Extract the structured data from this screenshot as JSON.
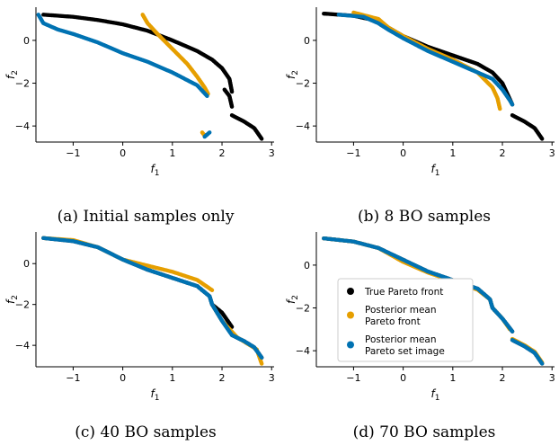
{
  "colors": {
    "true_front": "#000000",
    "posterior_front": "#e69f00",
    "posterior_set": "#0072b2"
  },
  "legend": {
    "items": [
      {
        "lines": [
          "True Pareto front"
        ],
        "color_key": "true_front"
      },
      {
        "lines": [
          "Posterior mean",
          "Pareto front"
        ],
        "color_key": "posterior_front"
      },
      {
        "lines": [
          "Posterior mean",
          "Pareto set image"
        ],
        "color_key": "posterior_set"
      }
    ]
  },
  "chart_data": [
    {
      "type": "scatter",
      "caption": "(a) Initial samples only",
      "xlabel": "f1",
      "ylabel": "f2",
      "xlim": [
        -1.75,
        3.05
      ],
      "ylim": [
        -4.75,
        1.55
      ],
      "xticks": [
        -1,
        0,
        1,
        2,
        3
      ],
      "yticks": [
        -4,
        -2,
        0
      ],
      "grid": false,
      "legend": null,
      "series": [
        {
          "color_key": "true_front",
          "segments": [
            [
              [
                -1.6,
                1.2
              ],
              [
                -1.0,
                1.1
              ],
              [
                -0.5,
                0.95
              ],
              [
                0.0,
                0.75
              ],
              [
                0.5,
                0.45
              ],
              [
                1.0,
                0.0
              ],
              [
                1.5,
                -0.5
              ],
              [
                1.8,
                -0.9
              ],
              [
                2.0,
                -1.3
              ],
              [
                2.15,
                -1.8
              ],
              [
                2.2,
                -2.4
              ]
            ],
            [
              [
                2.05,
                -2.3
              ],
              [
                2.15,
                -2.6
              ],
              [
                2.2,
                -3.1
              ]
            ],
            [
              [
                2.2,
                -3.5
              ],
              [
                2.45,
                -3.8
              ],
              [
                2.65,
                -4.1
              ],
              [
                2.8,
                -4.6
              ]
            ]
          ]
        },
        {
          "color_key": "posterior_front",
          "segments": [
            [
              [
                0.4,
                1.2
              ],
              [
                0.5,
                0.8
              ],
              [
                0.7,
                0.3
              ],
              [
                1.0,
                -0.4
              ],
              [
                1.3,
                -1.1
              ],
              [
                1.5,
                -1.7
              ],
              [
                1.65,
                -2.2
              ],
              [
                1.72,
                -2.5
              ]
            ],
            [
              [
                1.6,
                -4.3
              ],
              [
                1.65,
                -4.45
              ]
            ]
          ]
        },
        {
          "color_key": "posterior_set",
          "segments": [
            [
              [
                -1.7,
                1.2
              ],
              [
                -1.6,
                0.8
              ],
              [
                -1.3,
                0.5
              ],
              [
                -1.0,
                0.3
              ],
              [
                -0.5,
                -0.1
              ],
              [
                0.0,
                -0.6
              ],
              [
                0.5,
                -1.0
              ],
              [
                1.0,
                -1.5
              ],
              [
                1.5,
                -2.1
              ],
              [
                1.7,
                -2.6
              ]
            ],
            [
              [
                1.65,
                -4.5
              ],
              [
                1.75,
                -4.3
              ]
            ]
          ]
        }
      ]
    },
    {
      "type": "scatter",
      "caption": "(b) 8 BO samples",
      "xlabel": "f1",
      "ylabel": "f2",
      "xlim": [
        -1.75,
        3.05
      ],
      "ylim": [
        -4.75,
        1.55
      ],
      "xticks": [
        -1,
        0,
        1,
        2,
        3
      ],
      "yticks": [
        -4,
        -2,
        0
      ],
      "grid": false,
      "legend": null,
      "series": [
        {
          "color_key": "true_front",
          "segments": [
            [
              [
                -1.6,
                1.25
              ],
              [
                -1.0,
                1.15
              ],
              [
                -0.5,
                0.9
              ],
              [
                -0.3,
                0.6
              ],
              [
                0.0,
                0.2
              ],
              [
                0.5,
                -0.3
              ],
              [
                1.0,
                -0.7
              ],
              [
                1.5,
                -1.1
              ],
              [
                1.8,
                -1.5
              ],
              [
                2.0,
                -2.0
              ],
              [
                2.1,
                -2.5
              ],
              [
                2.2,
                -3.0
              ]
            ],
            [
              [
                2.2,
                -3.5
              ],
              [
                2.45,
                -3.8
              ],
              [
                2.65,
                -4.1
              ],
              [
                2.8,
                -4.6
              ]
            ]
          ]
        },
        {
          "color_key": "posterior_front",
          "segments": [
            [
              [
                -1.0,
                1.3
              ],
              [
                -0.5,
                1.0
              ],
              [
                -0.3,
                0.6
              ],
              [
                0.0,
                0.2
              ],
              [
                0.5,
                -0.4
              ],
              [
                1.0,
                -0.9
              ],
              [
                1.5,
                -1.5
              ],
              [
                1.8,
                -2.2
              ],
              [
                1.9,
                -2.7
              ],
              [
                1.95,
                -3.2
              ]
            ]
          ]
        },
        {
          "color_key": "posterior_set",
          "segments": [
            [
              [
                -1.3,
                1.2
              ],
              [
                -0.8,
                1.1
              ],
              [
                -0.5,
                0.8
              ],
              [
                -0.3,
                0.5
              ],
              [
                0.0,
                0.1
              ],
              [
                0.5,
                -0.5
              ],
              [
                1.0,
                -1.0
              ],
              [
                1.5,
                -1.5
              ],
              [
                1.8,
                -1.8
              ],
              [
                2.0,
                -2.3
              ],
              [
                2.15,
                -2.8
              ],
              [
                2.2,
                -3.0
              ]
            ]
          ]
        }
      ]
    },
    {
      "type": "scatter",
      "caption": "(c) 40 BO samples",
      "xlabel": "f1",
      "ylabel": "f2",
      "xlim": [
        -1.75,
        3.05
      ],
      "ylim": [
        -5.05,
        1.55
      ],
      "xticks": [
        -1,
        0,
        1,
        2,
        3
      ],
      "yticks": [
        -4,
        -2,
        0
      ],
      "grid": false,
      "legend": null,
      "series": [
        {
          "color_key": "true_front",
          "segments": [
            [
              [
                -1.6,
                1.25
              ],
              [
                -1.0,
                1.1
              ],
              [
                -0.5,
                0.8
              ],
              [
                0.0,
                0.2
              ],
              [
                0.5,
                -0.3
              ],
              [
                1.0,
                -0.7
              ],
              [
                1.5,
                -1.1
              ],
              [
                1.75,
                -1.6
              ],
              [
                1.8,
                -2.0
              ]
            ],
            [
              [
                1.8,
                -2.0
              ],
              [
                2.0,
                -2.4
              ],
              [
                2.2,
                -3.1
              ]
            ],
            [
              [
                2.2,
                -3.5
              ],
              [
                2.45,
                -3.8
              ],
              [
                2.65,
                -4.1
              ],
              [
                2.8,
                -4.6
              ]
            ]
          ]
        },
        {
          "color_key": "posterior_front",
          "segments": [
            [
              [
                -1.6,
                1.25
              ],
              [
                -1.0,
                1.15
              ],
              [
                -0.5,
                0.8
              ],
              [
                0.0,
                0.2
              ],
              [
                0.5,
                -0.1
              ],
              [
                1.0,
                -0.4
              ],
              [
                1.5,
                -0.8
              ],
              [
                1.8,
                -1.3
              ]
            ],
            [
              [
                1.8,
                -2.0
              ],
              [
                2.0,
                -2.8
              ],
              [
                2.3,
                -3.6
              ],
              [
                2.7,
                -4.2
              ],
              [
                2.8,
                -4.9
              ]
            ]
          ]
        },
        {
          "color_key": "posterior_set",
          "segments": [
            [
              [
                -1.6,
                1.25
              ],
              [
                -1.0,
                1.1
              ],
              [
                -0.5,
                0.8
              ],
              [
                0.0,
                0.2
              ],
              [
                0.5,
                -0.3
              ],
              [
                1.0,
                -0.7
              ],
              [
                1.5,
                -1.1
              ],
              [
                1.75,
                -1.6
              ],
              [
                1.8,
                -2.0
              ],
              [
                2.0,
                -2.8
              ],
              [
                2.2,
                -3.5
              ],
              [
                2.45,
                -3.8
              ],
              [
                2.65,
                -4.1
              ],
              [
                2.8,
                -4.6
              ]
            ]
          ]
        }
      ]
    },
    {
      "type": "scatter",
      "caption": "(d) 70 BO samples",
      "xlabel": "f1",
      "ylabel": "f2",
      "xlim": [
        -1.75,
        3.05
      ],
      "ylim": [
        -4.75,
        1.55
      ],
      "xticks": [
        -1,
        0,
        1,
        2,
        3
      ],
      "yticks": [
        -4,
        -2,
        0
      ],
      "grid": false,
      "legend": "lower-left",
      "series": [
        {
          "color_key": "true_front",
          "segments": [
            [
              [
                -1.6,
                1.25
              ],
              [
                -1.0,
                1.1
              ],
              [
                -0.5,
                0.8
              ],
              [
                0.0,
                0.25
              ],
              [
                0.5,
                -0.3
              ],
              [
                1.0,
                -0.7
              ],
              [
                1.5,
                -1.1
              ],
              [
                1.75,
                -1.6
              ],
              [
                1.8,
                -2.0
              ],
              [
                2.0,
                -2.5
              ],
              [
                2.2,
                -3.1
              ]
            ],
            [
              [
                2.2,
                -3.5
              ],
              [
                2.45,
                -3.8
              ],
              [
                2.65,
                -4.1
              ],
              [
                2.8,
                -4.6
              ]
            ]
          ]
        },
        {
          "color_key": "posterior_front",
          "segments": [
            [
              [
                -1.6,
                1.25
              ],
              [
                -1.0,
                1.1
              ],
              [
                -0.5,
                0.8
              ],
              [
                0.0,
                0.15
              ],
              [
                0.5,
                -0.35
              ],
              [
                1.0,
                -0.75
              ],
              [
                1.5,
                -1.15
              ],
              [
                1.75,
                -1.6
              ],
              [
                1.8,
                -2.0
              ],
              [
                2.0,
                -2.5
              ],
              [
                2.15,
                -3.0
              ]
            ],
            [
              [
                2.2,
                -3.45
              ],
              [
                2.45,
                -3.75
              ],
              [
                2.65,
                -4.05
              ],
              [
                2.8,
                -4.55
              ]
            ]
          ]
        },
        {
          "color_key": "posterior_set",
          "segments": [
            [
              [
                -1.6,
                1.25
              ],
              [
                -1.0,
                1.1
              ],
              [
                -0.5,
                0.8
              ],
              [
                0.0,
                0.25
              ],
              [
                0.5,
                -0.3
              ],
              [
                1.0,
                -0.7
              ],
              [
                1.5,
                -1.1
              ],
              [
                1.75,
                -1.6
              ],
              [
                1.8,
                -2.0
              ],
              [
                2.0,
                -2.5
              ],
              [
                2.2,
                -3.1
              ]
            ],
            [
              [
                2.2,
                -3.5
              ],
              [
                2.45,
                -3.8
              ],
              [
                2.65,
                -4.1
              ],
              [
                2.8,
                -4.6
              ]
            ]
          ]
        }
      ]
    }
  ]
}
